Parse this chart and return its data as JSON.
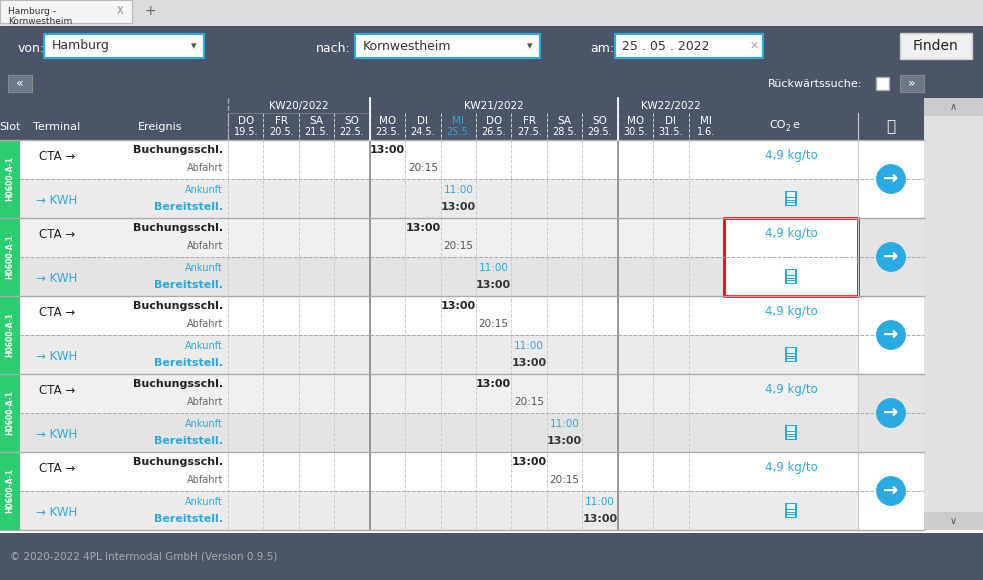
{
  "fig_width": 9.83,
  "fig_height": 5.8,
  "header_bg": "#4a5568",
  "green_slot": "#2ecc71",
  "blue_text": "#29aae1",
  "dark_text": "#222222",
  "white_text": "#ffffff",
  "gray_text": "#777777",
  "title_tab": "Hamburg -\nKornwestheim",
  "von_label": "von:",
  "von_value": "Hamburg",
  "nach_label": "nach:",
  "nach_value": "Kornwestheim",
  "am_label": "am:",
  "am_value": "25 . 05 . 2022",
  "finden_label": "Finden",
  "rueck_label": "Rückwärtssuche:",
  "footer": "© 2020-2022 4PL Intermodal GmbH (Version 0.9.5)",
  "rows": [
    {
      "slot": "H0600-A-1",
      "terminal_top": "CTA →",
      "terminal_bot": "→ KWH",
      "times": {
        "Buchungsschl.": {
          "col": "MO23",
          "time": "13:00"
        },
        "Abfahrt": {
          "col": "DI24",
          "time": "20:15"
        },
        "Ankunft": {
          "col": "MI25",
          "time": "11:00"
        },
        "Bereitstell.": {
          "col": "MI25",
          "time": "13:00"
        }
      },
      "co2": "4,9 kg/to",
      "highlighted": false
    },
    {
      "slot": "H0600-A-1",
      "terminal_top": "CTA →",
      "terminal_bot": "→ KWH",
      "times": {
        "Buchungsschl.": {
          "col": "DI24",
          "time": "13:00"
        },
        "Abfahrt": {
          "col": "MI25",
          "time": "20:15"
        },
        "Ankunft": {
          "col": "DO26",
          "time": "11:00"
        },
        "Bereitstell.": {
          "col": "DO26",
          "time": "13:00"
        }
      },
      "co2": "4,9 kg/to",
      "highlighted": true
    },
    {
      "slot": "H0600-A-1",
      "terminal_top": "CTA →",
      "terminal_bot": "→ KWH",
      "times": {
        "Buchungsschl.": {
          "col": "MI25",
          "time": "13:00"
        },
        "Abfahrt": {
          "col": "DO26",
          "time": "20:15"
        },
        "Ankunft": {
          "col": "FR27",
          "time": "11:00"
        },
        "Bereitstell.": {
          "col": "FR27",
          "time": "13:00"
        }
      },
      "co2": "4,9 kg/to",
      "highlighted": false
    },
    {
      "slot": "H0600-A-1",
      "terminal_top": "CTA →",
      "terminal_bot": "→ KWH",
      "times": {
        "Buchungsschl.": {
          "col": "DO26",
          "time": "13:00"
        },
        "Abfahrt": {
          "col": "FR27",
          "time": "20:15"
        },
        "Ankunft": {
          "col": "SA28",
          "time": "11:00"
        },
        "Bereitstell.": {
          "col": "SA28",
          "time": "13:00"
        }
      },
      "co2": "4,9 kg/to",
      "highlighted": false
    },
    {
      "slot": "H0600-A-1",
      "terminal_top": "CTA →",
      "terminal_bot": "→ KWH",
      "times": {
        "Buchungsschl.": {
          "col": "FR27",
          "time": "13:00"
        },
        "Abfahrt": {
          "col": "SA28",
          "time": "20:15"
        },
        "Ankunft": {
          "col": "SO29",
          "time": "11:00"
        },
        "Bereitstell.": {
          "col": "SO29",
          "time": "13:00"
        }
      },
      "co2": "4,9 kg/to",
      "highlighted": false
    }
  ]
}
